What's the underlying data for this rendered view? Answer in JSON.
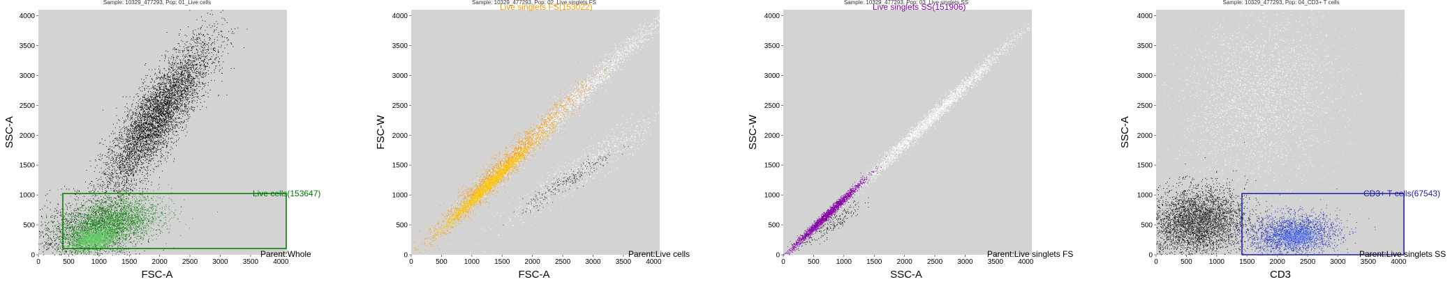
{
  "panels": [
    {
      "title": "Sample: 10329_477293, Pop: 01_Live cells",
      "gate_label": "Live cells(153647)",
      "parent_label": "Parent:Whole"
    },
    {
      "title": "Sample: 10329_477293, Pop: 02_Live singlets FS",
      "gate_label": "Live singlets FS(153022)",
      "parent_label": "Parent:Live cells"
    },
    {
      "title": "Sample: 10329_477293, Pop: 03_Live singlets SS",
      "gate_label": "Live singlets SS(151906)",
      "parent_label": "Parent:Live singlets FS"
    },
    {
      "title": "Sample: 10329_477293, Pop: 04_CD3+ T cells",
      "gate_label": "CD3+ T cells(67543)",
      "parent_label": "Parent:Live singlets SS"
    }
  ],
  "chart_data": [
    {
      "type": "scatter",
      "title": "Sample: 10329_477293, Pop: 01_Live cells",
      "xlabel": "FSC-A",
      "ylabel": "SSC-A",
      "xlim": [
        0,
        4100
      ],
      "ylim": [
        0,
        4100
      ],
      "x_ticks": [
        0,
        500,
        1000,
        1500,
        2000,
        2500,
        3000,
        3500,
        4000
      ],
      "y_ticks": [
        0,
        500,
        1000,
        1500,
        2000,
        2500,
        3000,
        3500,
        4000
      ],
      "gate": {
        "shape": "rect",
        "x": [
          400,
          4100
        ],
        "y": [
          100,
          1020
        ],
        "color": "#007700"
      },
      "annotations": [
        "Live cells(153647)",
        "Parent:Whole"
      ],
      "populations": [
        {
          "color": "#000000",
          "center": [
            1950,
            2300
          ],
          "spread": [
            450,
            650
          ],
          "rho": 0.85,
          "count": 5200
        },
        {
          "color": "#000000",
          "center": [
            700,
            350
          ],
          "spread": [
            500,
            300
          ],
          "rho": 0.1,
          "count": 1200
        },
        {
          "color": "#1f8f1f",
          "center": [
            1150,
            520
          ],
          "spread": [
            420,
            230
          ],
          "rho": 0.4,
          "count": 3400
        },
        {
          "color": "#66cc66",
          "center": [
            900,
            260
          ],
          "spread": [
            180,
            90
          ],
          "rho": 0.3,
          "count": 1600
        }
      ]
    },
    {
      "type": "scatter",
      "title": "Sample: 10329_477293, Pop: 02_Live singlets FS",
      "xlabel": "FSC-A",
      "ylabel": "FSC-W",
      "xlim": [
        0,
        4100
      ],
      "ylim": [
        0,
        4100
      ],
      "x_ticks": [
        0,
        500,
        1000,
        1500,
        2000,
        2500,
        3000,
        3500,
        4000
      ],
      "y_ticks": [
        0,
        500,
        1000,
        1500,
        2000,
        2500,
        3000,
        3500,
        4000
      ],
      "annotations": [
        "Live singlets FS(153022)",
        "Parent:Live cells"
      ],
      "populations": [
        {
          "color": "#ffffff",
          "center": [
            2700,
            2600
          ],
          "spread": [
            800,
            780
          ],
          "rho": 0.99,
          "count": 2200
        },
        {
          "color": "#ffffff",
          "center": [
            2900,
            1500
          ],
          "spread": [
            700,
            500
          ],
          "rho": 0.95,
          "count": 900
        },
        {
          "color": "#ff9900",
          "center": [
            1500,
            1450
          ],
          "spread": [
            650,
            650
          ],
          "rho": 0.98,
          "count": 2200
        },
        {
          "color": "#ffcc00",
          "center": [
            1250,
            1150
          ],
          "spread": [
            350,
            340
          ],
          "rho": 0.985,
          "count": 1600
        },
        {
          "color": "#333333",
          "center": [
            2600,
            1250
          ],
          "spread": [
            380,
            250
          ],
          "rho": 0.95,
          "count": 250
        }
      ]
    },
    {
      "type": "scatter",
      "title": "Sample: 10329_477293, Pop: 03_Live singlets SS",
      "xlabel": "SSC-A",
      "ylabel": "SSC-W",
      "xlim": [
        0,
        4100
      ],
      "ylim": [
        0,
        4100
      ],
      "x_ticks": [
        0,
        500,
        1000,
        1500,
        2000,
        2500,
        3000,
        3500,
        4000
      ],
      "y_ticks": [
        0,
        500,
        1000,
        1500,
        2000,
        2500,
        3000,
        3500,
        4000
      ],
      "annotations": [
        "Live singlets SS(151906)",
        "Parent:Live singlets FS"
      ],
      "populations": [
        {
          "color": "#ffffff",
          "center": [
            2450,
            2300
          ],
          "spread": [
            700,
            680
          ],
          "rho": 0.995,
          "count": 2600
        },
        {
          "color": "#8800aa",
          "center": [
            700,
            650
          ],
          "spread": [
            300,
            290
          ],
          "rho": 0.99,
          "count": 2000
        },
        {
          "color": "#111111",
          "center": [
            800,
            520
          ],
          "spread": [
            250,
            200
          ],
          "rho": 0.9,
          "count": 200
        }
      ]
    },
    {
      "type": "scatter",
      "title": "Sample: 10329_477293, Pop: 04_CD3+ T cells",
      "xlabel": "CD3",
      "ylabel": "SSC-A",
      "xlim": [
        0,
        4100
      ],
      "ylim": [
        0,
        4100
      ],
      "x_ticks": [
        0,
        500,
        1000,
        1500,
        2000,
        2500,
        3000,
        3500,
        4000
      ],
      "y_ticks": [
        0,
        500,
        1000,
        1500,
        2000,
        2500,
        3000,
        3500,
        4000
      ],
      "gate": {
        "shape": "rect",
        "x": [
          1430,
          4100
        ],
        "y": [
          0,
          1020
        ],
        "color": "#1a1aaa"
      },
      "annotations": [
        "CD3+ T cells(67543)",
        "Parent:Live singlets SS"
      ],
      "populations": [
        {
          "color": "#ffffff",
          "center": [
            1700,
            2600
          ],
          "spread": [
            650,
            700
          ],
          "rho": 0.15,
          "count": 2800
        },
        {
          "color": "#000000",
          "center": [
            650,
            550
          ],
          "spread": [
            420,
            300
          ],
          "rho": 0.1,
          "count": 3200
        },
        {
          "color": "#555555",
          "center": [
            700,
            550
          ],
          "spread": [
            300,
            200
          ],
          "rho": 0.1,
          "count": 1200
        },
        {
          "color": "#2233bb",
          "center": [
            2250,
            350
          ],
          "spread": [
            380,
            170
          ],
          "rho": 0.1,
          "count": 2200
        },
        {
          "color": "#6688ff",
          "center": [
            2300,
            300
          ],
          "spread": [
            200,
            90
          ],
          "rho": 0.1,
          "count": 700
        }
      ]
    }
  ]
}
